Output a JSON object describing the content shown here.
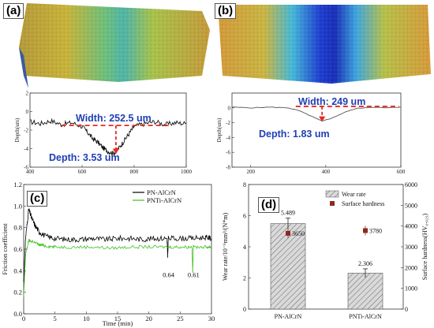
{
  "panels": {
    "a": {
      "label": "(a)",
      "width_text": "Width: 252.5 um",
      "depth_text": "Depth: 3.53 um"
    },
    "b": {
      "label": "(b)",
      "width_text": "Width: 249 um",
      "depth_text": "Depth: 1.83 um"
    },
    "c": {
      "label": "(c)"
    },
    "d": {
      "label": "(d)"
    }
  },
  "colors": {
    "annotation": "#1f3fb5",
    "arrow": "#e8281e",
    "pn": "#000000",
    "pnti": "#3fbf1f",
    "bar_fill": "#d9d9d9",
    "hardness_marker": "#8b2a1e"
  },
  "chart_data": [
    {
      "type": "line",
      "panel": "a",
      "title": "",
      "xlabel": "Distance(um)",
      "ylabel": "Depth(um)",
      "xlim": [
        400,
        1000
      ],
      "ylim": [
        -6,
        2
      ],
      "x_ticks": [
        "400",
        "600",
        "800",
        "1000"
      ],
      "y_ticks": [
        "2",
        "0",
        "-2",
        "-4",
        "-6"
      ],
      "series": [
        {
          "x": [
            400,
            440,
            480,
            520,
            560,
            600,
            620,
            640,
            660,
            680,
            700,
            720,
            740,
            760,
            780,
            800,
            840,
            880,
            920,
            960,
            1000
          ],
          "values": [
            -1.1,
            -1.3,
            -1.0,
            -1.4,
            -1.2,
            -1.6,
            -2.2,
            -2.9,
            -3.3,
            -3.9,
            -4.3,
            -4.5,
            -4.0,
            -3.2,
            -2.4,
            -1.6,
            -1.3,
            -1.1,
            -1.4,
            -1.2,
            -1.3
          ]
        }
      ],
      "annotations": [
        "Width: 252.5 um",
        "Depth: 3.53 um"
      ]
    },
    {
      "type": "line",
      "panel": "b",
      "title": "",
      "xlabel": "",
      "ylabel": "Depth(um)",
      "xlim": [
        150,
        600
      ],
      "ylim": [
        -8,
        2
      ],
      "x_ticks": [
        "200",
        "400",
        "600"
      ],
      "y_ticks": [
        "0",
        "-2",
        "-4",
        "-6",
        "-8"
      ],
      "series": [
        {
          "x": [
            150,
            200,
            250,
            300,
            330,
            360,
            390,
            420,
            450,
            480,
            520,
            560,
            600
          ],
          "values": [
            0.1,
            0.0,
            0.1,
            0.0,
            -0.4,
            -1.1,
            -1.8,
            -1.3,
            -0.6,
            -0.1,
            0.1,
            0.0,
            0.1
          ]
        }
      ],
      "annotations": [
        "Width: 249 um",
        "Depth: 1.83 um"
      ]
    },
    {
      "type": "line",
      "panel": "c",
      "title": "",
      "xlabel": "Time (min)",
      "ylabel": "Friction coefficient",
      "xlim": [
        0,
        30
      ],
      "ylim": [
        0.0,
        1.2
      ],
      "x_ticks": [
        "0",
        "5",
        "10",
        "15",
        "20",
        "25",
        "30"
      ],
      "y_ticks": [
        "0.0",
        "0.2",
        "0.4",
        "0.6",
        "0.8",
        "1.0",
        "1.2"
      ],
      "legend": "top-right",
      "series": [
        {
          "name": "PN-AlCrN",
          "x": [
            0,
            0.3,
            0.8,
            1.2,
            1.8,
            2.5,
            3.5,
            5,
            7,
            9,
            11,
            13,
            15,
            17,
            19,
            21,
            22.9,
            23,
            23.1,
            25,
            27,
            29,
            30
          ],
          "values": [
            0.3,
            0.7,
            0.97,
            0.9,
            0.82,
            0.76,
            0.72,
            0.7,
            0.69,
            0.69,
            0.7,
            0.69,
            0.7,
            0.7,
            0.69,
            0.7,
            0.7,
            0.52,
            0.7,
            0.7,
            0.7,
            0.71,
            0.7
          ]
        },
        {
          "name": "PNTi-AlCrN",
          "x": [
            0,
            0.3,
            0.8,
            1.5,
            2.5,
            3.5,
            5,
            8,
            11,
            14,
            17,
            20,
            23,
            25,
            26.9,
            27,
            27.1,
            29,
            30
          ],
          "values": [
            0.15,
            0.55,
            0.68,
            0.67,
            0.64,
            0.63,
            0.62,
            0.62,
            0.62,
            0.61,
            0.62,
            0.62,
            0.62,
            0.62,
            0.62,
            0.38,
            0.62,
            0.62,
            0.62
          ]
        }
      ],
      "annotations": [
        "0.64",
        "0.61"
      ]
    },
    {
      "type": "bar",
      "panel": "d",
      "title": "",
      "categories": [
        "PN-AlCrN",
        "PNTi-AlCrN"
      ],
      "ylabel": "Wear rate/10⁻⁶mm³/(N*m)",
      "y2label": "Surface hardness(HV₀.₀₂₅)",
      "ylim": [
        0,
        8
      ],
      "y2lim": [
        0,
        6000
      ],
      "y_ticks": [
        "0",
        "2",
        "4",
        "6",
        "8"
      ],
      "y2_ticks": [
        "0",
        "1000",
        "2000",
        "3000",
        "4000",
        "5000",
        "6000"
      ],
      "legend": "top-right",
      "series": [
        {
          "name": "Wear rate",
          "values": [
            5.489,
            2.306
          ],
          "labels": [
            "5.489",
            "2.306"
          ]
        },
        {
          "name": "Surface hardness",
          "values": [
            3650,
            3780
          ],
          "labels": [
            "3650",
            "3780"
          ]
        }
      ]
    }
  ]
}
